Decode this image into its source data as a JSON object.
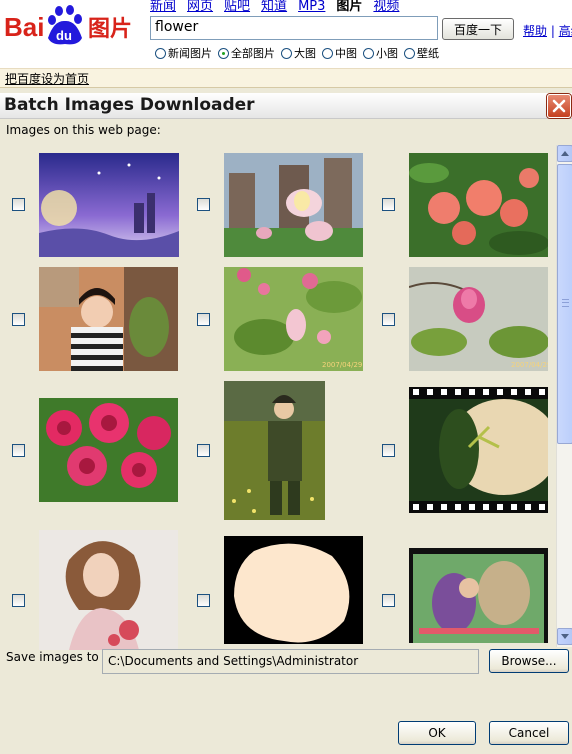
{
  "baidu": {
    "logo_text": "Bai",
    "logo_du": "du",
    "logo_cn": "图片",
    "nav": [
      "新闻",
      "网页",
      "贴吧",
      "知道",
      "MP3",
      "图片",
      "视频"
    ],
    "nav_active_index": 5,
    "search_value": "flower",
    "search_button": "百度一下",
    "help_link": "帮助",
    "adv_link": "高级",
    "size_options": [
      "新闻图片",
      "全部图片",
      "大图",
      "中图",
      "小图",
      "壁纸"
    ],
    "selected_option_index": 1,
    "set_homepage": "把百度设为首页"
  },
  "dialog": {
    "title": "Batch Images Downloader",
    "images_label": "Images on this web page:",
    "images": [
      {
        "subject": "fantasy-night-castle",
        "checked": false
      },
      {
        "subject": "lotus-with-buildings",
        "checked": false
      },
      {
        "subject": "pink-ixora-cluster",
        "checked": false
      },
      {
        "subject": "little-girl-portrait",
        "checked": false
      },
      {
        "subject": "pink-blossoms",
        "checked": false,
        "caption": "2007/04/29"
      },
      {
        "subject": "pink-bud",
        "checked": false,
        "caption": "2007/04/29"
      },
      {
        "subject": "pink-roses",
        "checked": false
      },
      {
        "subject": "man-in-uniform-field",
        "checked": false
      },
      {
        "subject": "flower-filmstrip",
        "checked": false
      },
      {
        "subject": "woman-portrait",
        "checked": false
      },
      {
        "subject": "cream-blob-on-black",
        "checked": false
      },
      {
        "subject": "tv-poster",
        "checked": false
      }
    ],
    "save_label": "Save images to",
    "save_path": "C:\\Documents and Settings\\Administrator",
    "browse_button": "Browse...",
    "ok_button": "OK",
    "cancel_button": "Cancel"
  },
  "colors": {
    "dialog_bg": "#ece9d8",
    "close_button": "#c5401f",
    "baidu_red": "#d8231a",
    "baidu_blue": "#2319dc",
    "link_blue": "#0000cc"
  }
}
